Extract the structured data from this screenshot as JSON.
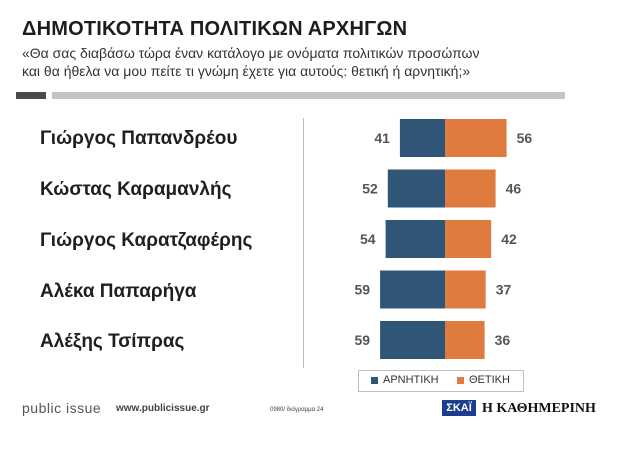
{
  "header": {
    "title": "ΔΗΜΟΤΙΚΟΤΗΤΑ ΠΟΛΙΤΙΚΩΝ ΑΡΧΗΓΩΝ",
    "subtitle_line1": "«Θα σας διαβάσω τώρα έναν κατάλογο με ονόματα πολιτικών προσώπων",
    "subtitle_line2": "και θα ήθελα να μου πείτε τι γνώμη έχετε για αυτούς: θετική ή αρνητική;»"
  },
  "colors": {
    "negative": "#2f5577",
    "positive": "#e07b3f",
    "label": "#555555"
  },
  "chart_data": {
    "type": "bar",
    "orientation": "horizontal-diverging",
    "categories": [
      "Γιώργος Παπανδρέου",
      "Κώστας Καραμανλής",
      "Γιώργος Καρατζαφέρης",
      "Αλέκα Παπαρήγα",
      "Αλέξης Τσίπρας"
    ],
    "series": [
      {
        "name": "ΑΡΝΗΤΙΚΗ",
        "values": [
          41,
          52,
          54,
          59,
          59
        ]
      },
      {
        "name": "ΘΕΤΙΚΗ",
        "values": [
          56,
          46,
          42,
          37,
          36
        ]
      }
    ],
    "legend": "bottom"
  },
  "footer": {
    "brand": "public issue",
    "url": "www.publicissue.gr",
    "ref": "0980/ διάγραμμα 24",
    "logo_skai": "ΣΚΑΪ",
    "logo_kathimerini": "Η ΚΑΘΗΜΕΡΙΝΗ"
  }
}
